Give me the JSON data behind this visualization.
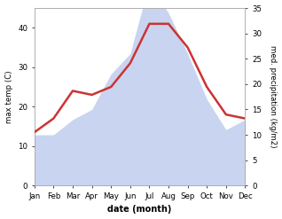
{
  "months": [
    "Jan",
    "Feb",
    "Mar",
    "Apr",
    "May",
    "Jun",
    "Jul",
    "Aug",
    "Sep",
    "Oct",
    "Nov",
    "Dec"
  ],
  "temp_line": [
    13.5,
    17,
    24,
    23,
    25,
    31,
    41,
    41,
    35,
    25,
    18,
    17
  ],
  "precip": [
    10,
    10,
    13,
    15,
    22,
    26,
    40,
    34,
    26,
    17,
    11,
    13
  ],
  "ylabel_left": "max temp (C)",
  "ylabel_right": "med. precipitation (kg/m2)",
  "xlabel": "date (month)",
  "ylim_left": [
    0,
    45
  ],
  "ylim_right": [
    0,
    35
  ],
  "temp_line_color": "#cc3333",
  "precip_fill_color": "#c8d4f0",
  "left_yticks": [
    0,
    10,
    20,
    30,
    40
  ],
  "right_yticks": [
    0,
    5,
    10,
    15,
    20,
    25,
    30,
    35
  ],
  "background_color": "#ffffff"
}
